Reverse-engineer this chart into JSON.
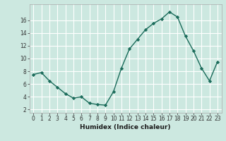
{
  "x_data": [
    0,
    1,
    2,
    3,
    4,
    5,
    6,
    7,
    8,
    9,
    10,
    11,
    12,
    13,
    14,
    15,
    16,
    17,
    18,
    19,
    20,
    21,
    22,
    23
  ],
  "y_data": [
    7.5,
    7.8,
    6.5,
    5.5,
    4.5,
    3.8,
    4.0,
    3.0,
    2.8,
    2.7,
    4.8,
    8.5,
    11.5,
    13.0,
    14.5,
    15.5,
    16.2,
    17.3,
    16.5,
    13.5,
    11.2,
    8.5,
    6.5,
    9.5
  ],
  "line_color": "#1a6b5a",
  "marker": "D",
  "marker_size": 2.2,
  "bg_color": "#cce8e0",
  "grid_color": "#ffffff",
  "xlabel": "Humidex (Indice chaleur)",
  "ylim": [
    1.5,
    18.5
  ],
  "xlim": [
    -0.5,
    23.5
  ],
  "yticks": [
    2,
    4,
    6,
    8,
    10,
    12,
    14,
    16
  ],
  "xticks": [
    0,
    1,
    2,
    3,
    4,
    5,
    6,
    7,
    8,
    9,
    10,
    11,
    12,
    13,
    14,
    15,
    16,
    17,
    18,
    19,
    20,
    21,
    22,
    23
  ],
  "tick_fontsize": 5.5,
  "xlabel_fontsize": 6.5,
  "linewidth": 1.0
}
